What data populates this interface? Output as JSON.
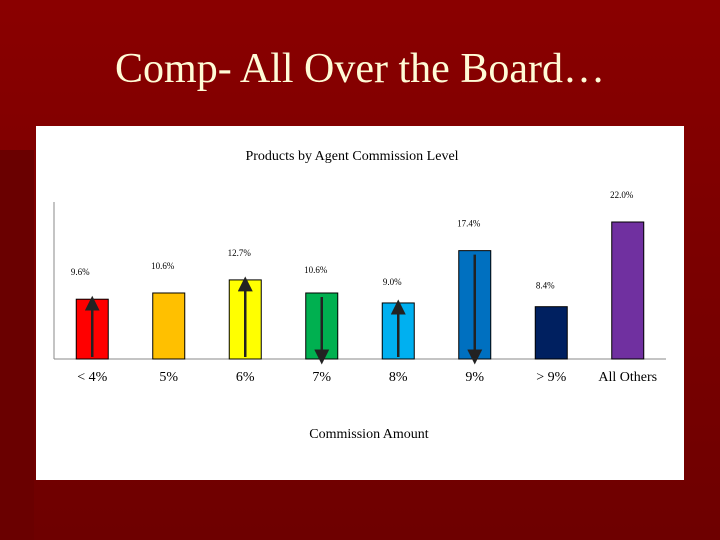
{
  "slide": {
    "title": "Comp- All Over the Board…"
  },
  "chart_data": {
    "type": "bar",
    "title": "Products by Agent Commission Level",
    "xlabel": "Commission Amount",
    "ylabel": "",
    "ylim": [
      0,
      22.0
    ],
    "grid": false,
    "legend": "none",
    "categories": [
      "< 4%",
      "5%",
      "6%",
      "7%",
      "8%",
      "9%",
      "> 9%",
      "All Others"
    ],
    "values": [
      9.6,
      10.6,
      12.7,
      10.6,
      9.0,
      17.4,
      8.4,
      22.0
    ],
    "data_labels": [
      "9.6%",
      "10.6%",
      "12.7%",
      "10.6%",
      "9.0%",
      "17.4%",
      "8.4%",
      "22.0%"
    ],
    "colors": [
      "#ff0000",
      "#ffc000",
      "#ffff00",
      "#00b050",
      "#00b0f0",
      "#0070c0",
      "#002060",
      "#7030a0"
    ],
    "arrows": [
      "up",
      "none",
      "up",
      "down",
      "up",
      "down",
      "none",
      "none"
    ]
  }
}
